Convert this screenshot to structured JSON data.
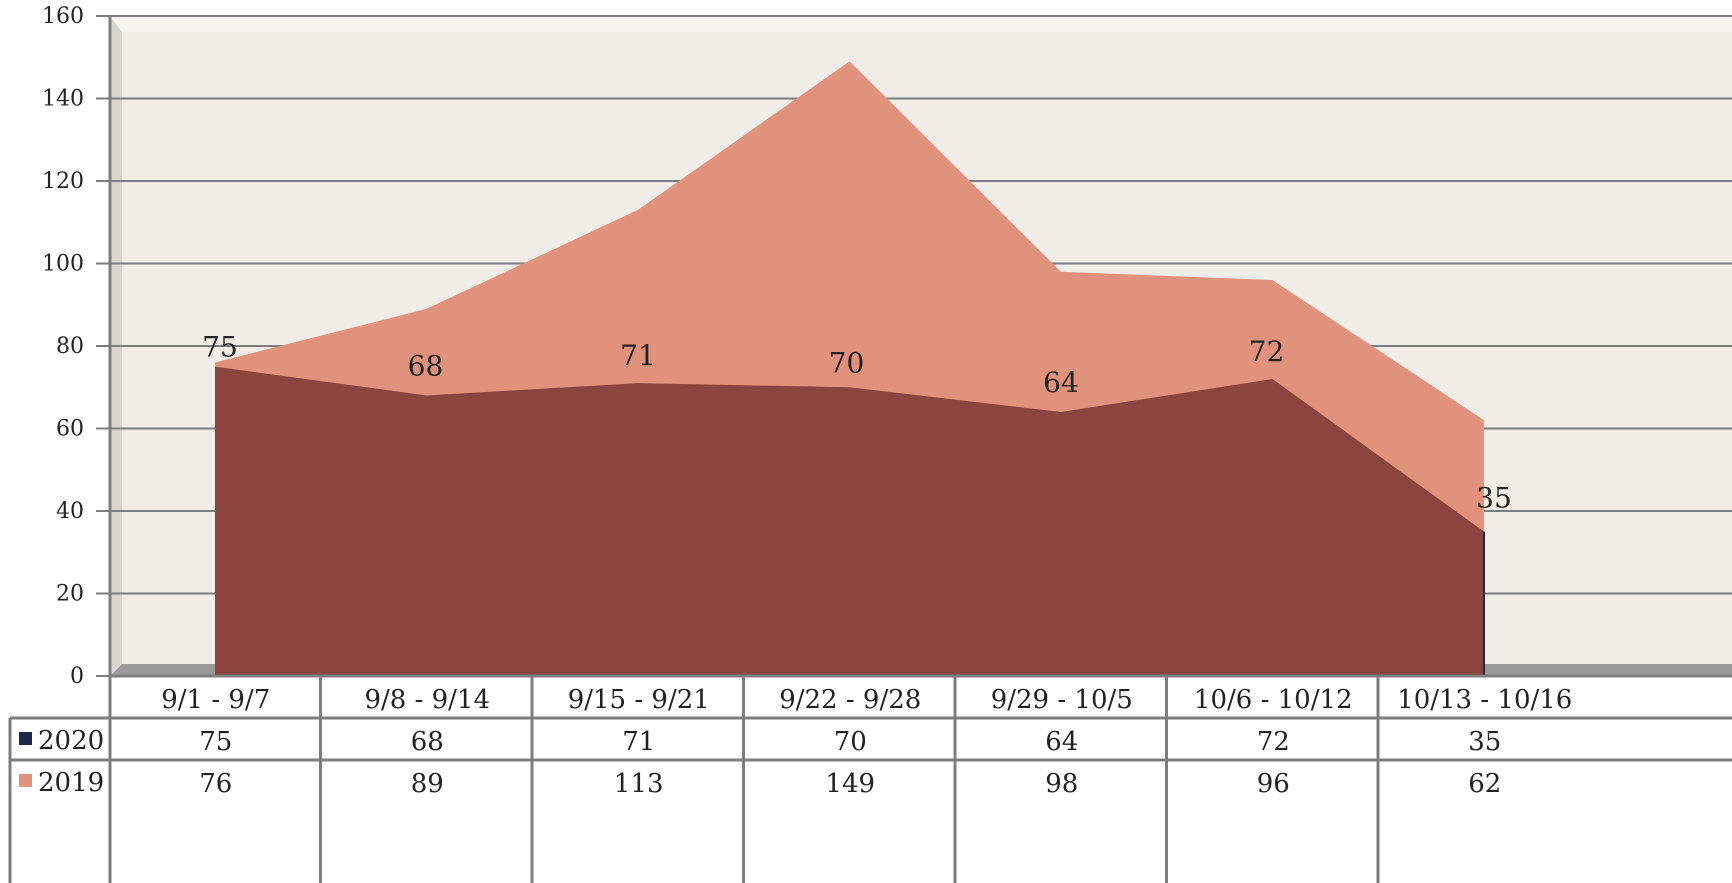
{
  "chart_data": {
    "type": "area",
    "categories": [
      "9/1 - 9/7",
      "9/8 - 9/14",
      "9/15 - 9/21",
      "9/22 - 9/28",
      "9/29 - 10/5",
      "10/6 - 10/12",
      "10/13 - 10/16"
    ],
    "series": [
      {
        "name": "2020",
        "values": [
          75,
          68,
          71,
          70,
          64,
          72,
          35
        ],
        "color": "#8B453E",
        "legend_color": "#1B2A4A",
        "data_labels": true
      },
      {
        "name": "2019",
        "values": [
          76,
          89,
          113,
          149,
          98,
          96,
          62
        ],
        "color": "#E1927D",
        "legend_color": "#E1927D",
        "data_labels": false
      }
    ],
    "ylim": [
      0,
      160
    ],
    "yticks": [
      "0",
      "20",
      "40",
      "60",
      "80",
      "100",
      "120",
      "140",
      "160"
    ],
    "grid": true,
    "legend": "data-table",
    "plot_background": "#F0ECE8"
  }
}
